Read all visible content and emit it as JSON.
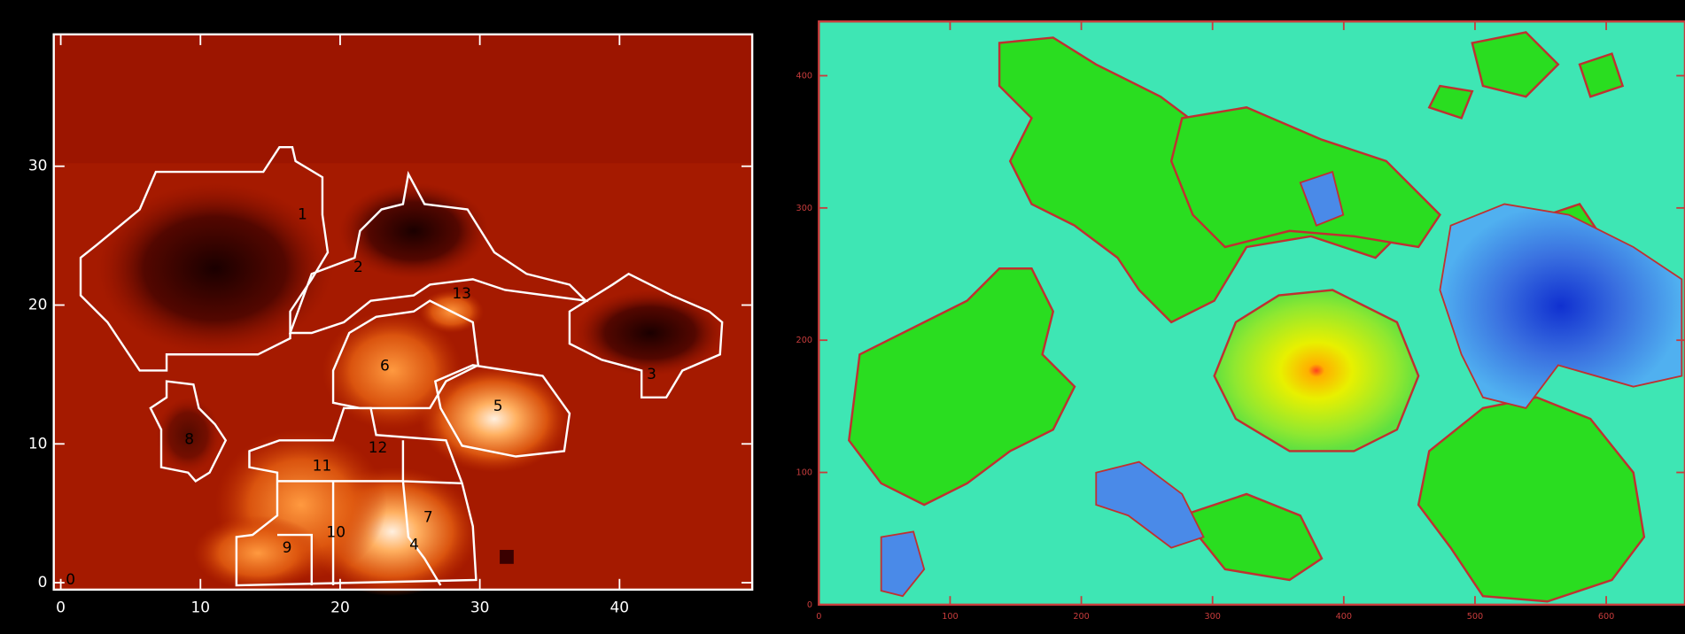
{
  "chart_data": [
    {
      "type": "image",
      "axis_color": "#ffffff",
      "xlim": [
        -0.5,
        49.5
      ],
      "ylim": [
        -0.5,
        39.5
      ],
      "xticks": [
        0,
        10,
        20,
        30,
        40
      ],
      "yticks": [
        0,
        10,
        20,
        30
      ],
      "annotations": [
        {
          "text": "1",
          "x": 17.3,
          "y": 26.5
        },
        {
          "text": "2",
          "x": 21.3,
          "y": 22.7
        },
        {
          "text": "13",
          "x": 28.7,
          "y": 20.8
        },
        {
          "text": "3",
          "x": 42.3,
          "y": 15.0
        },
        {
          "text": "6",
          "x": 23.2,
          "y": 15.6
        },
        {
          "text": "5",
          "x": 31.3,
          "y": 12.7
        },
        {
          "text": "8",
          "x": 9.2,
          "y": 10.3
        },
        {
          "text": "12",
          "x": 22.7,
          "y": 9.7
        },
        {
          "text": "11",
          "x": 18.7,
          "y": 8.4
        },
        {
          "text": "7",
          "x": 26.3,
          "y": 4.7
        },
        {
          "text": "10",
          "x": 19.7,
          "y": 3.6
        },
        {
          "text": "9",
          "x": 16.2,
          "y": 2.5
        },
        {
          "text": "4",
          "x": 25.3,
          "y": 2.7
        },
        {
          "text": "0",
          "x": 0.7,
          "y": 0.2
        }
      ]
    },
    {
      "type": "image",
      "axis_color": "#c83c3c",
      "xlim": [
        0,
        660
      ],
      "ylim": [
        0,
        441
      ],
      "xticks": [
        0,
        100,
        200,
        300,
        400,
        500,
        600
      ],
      "yticks": [
        0,
        100,
        200,
        300,
        400
      ]
    }
  ]
}
